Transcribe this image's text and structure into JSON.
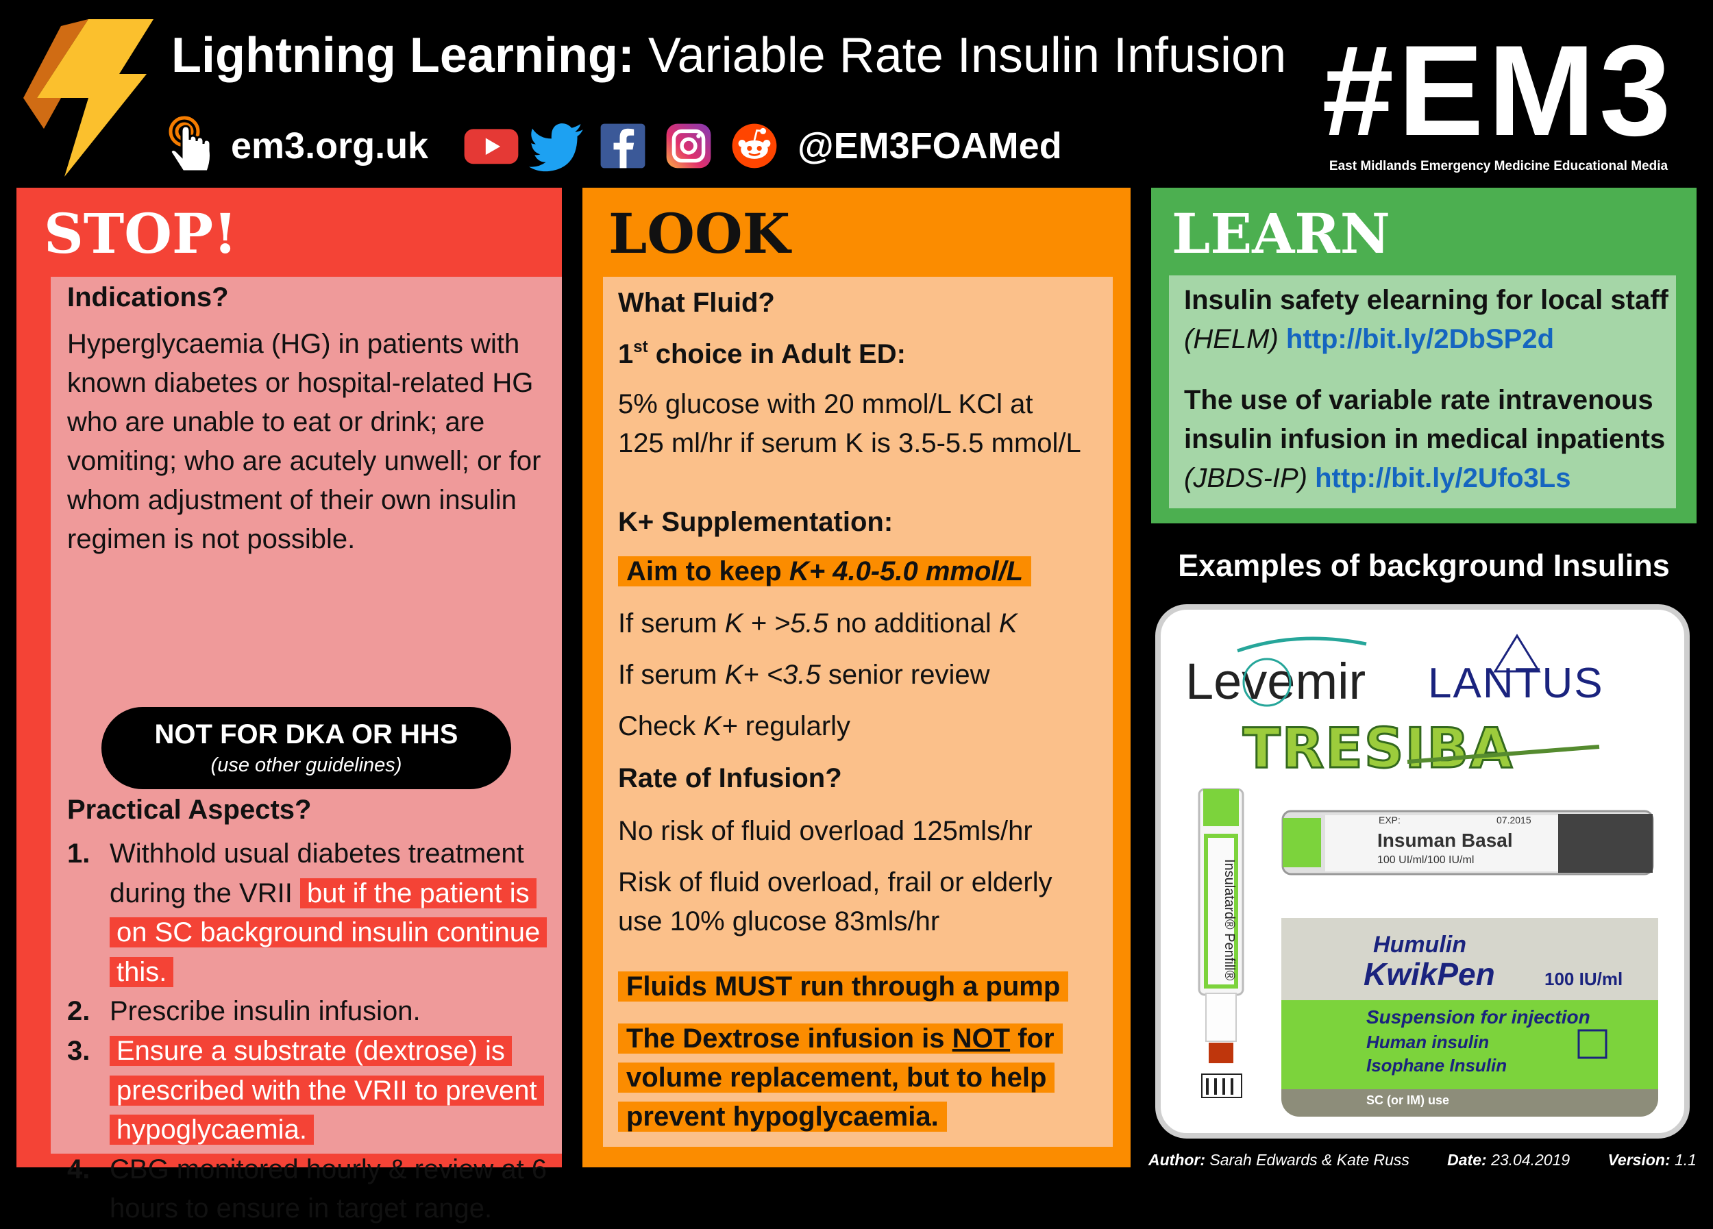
{
  "header": {
    "title_bold": "Lightning Learning:",
    "title_rest": "Variable Rate Insulin Infusion",
    "website": "em3.org.uk",
    "social_handle": "@EM3FOAMed",
    "social_icons": [
      "youtube-icon",
      "twitter-icon",
      "facebook-icon",
      "instagram-icon",
      "reddit-icon"
    ],
    "logo_text": "#EM3",
    "logo_subtitle": "East Midlands Emergency Medicine Educational Media"
  },
  "stop": {
    "title": "STOP!",
    "indications_heading": "Indications?",
    "indications_text": "Hyperglycaemia (HG) in patients with known diabetes or hospital-related HG who are unable to eat or drink; are vomiting; who are acutely unwell; or for whom adjustment of their own insulin regimen is not possible.",
    "warning_main": "NOT FOR DKA OR HHS",
    "warning_sub": "(use other guidelines)",
    "practical_heading": "Practical Aspects?",
    "items": [
      {
        "num": "1.",
        "text": "Withhold usual diabetes treatment during the VRII",
        "highlight": "but if the patient is on SC background insulin continue this."
      },
      {
        "num": "2.",
        "text": "Prescribe insulin infusion.",
        "highlight": ""
      },
      {
        "num": "3.",
        "text": "",
        "highlight": "Ensure a substrate (dextrose) is prescribed with the VRII to prevent hypoglycaemia."
      },
      {
        "num": "4.",
        "text": "CBG monitored hourly & review at 6 hours to ensure in target range.",
        "highlight": ""
      }
    ]
  },
  "look": {
    "title": "LOOK",
    "fluid_heading": "What Fluid?",
    "first_choice_pre": "1",
    "first_choice_sup": "st",
    "first_choice_post": " choice in Adult ED:",
    "fluid_text": "5% glucose with 20 mmol/L KCl at 125 ml/hr if serum K is 3.5-5.5 mmol/L",
    "k_heading": "K+ Supplementation:",
    "aim_pre": "Aim to keep ",
    "aim_em": "K+  4.0-5.0 mmol/L",
    "k1_pre": "If serum ",
    "k1_em": "K + >5.5",
    "k1_mid": " no additional ",
    "k1_em2": "K",
    "k2_pre": "If serum ",
    "k2_em": "K+ <3.5",
    "k2_post": " senior review",
    "k3_pre": "Check ",
    "k3_em": "K+",
    "k3_post": " regularly",
    "rate_heading": "Rate of Infusion?",
    "rate1": "No risk of fluid overload 125mls/hr",
    "rate2": "Risk of fluid overload, frail or elderly use 10% glucose 83mls/hr",
    "pump": "Fluids MUST run through a pump",
    "dex_pre": "The Dextrose infusion is ",
    "dex_not": "NOT",
    "dex_post": " for volume replacement, but to help prevent hypoglycaemia."
  },
  "learn": {
    "title": "LEARN",
    "r1_bold": "Insulin safety elearning for local staff",
    "r1_em": "(HELM)",
    "r1_link": "http://bit.ly/2DbSP2d",
    "r2_bold": "The use of variable rate intravenous insulin infusion in medical inpatients",
    "r2_em": "(JBDS-IP)",
    "r2_link": "http://bit.ly/2Ufo3Ls"
  },
  "examples": {
    "title": "Examples of background Insulins",
    "levemir": "Levemir",
    "lantus": "LANTUS",
    "tresiba": "TRESIBA",
    "insuman": "Insuman Basal",
    "insuman_sub": "100 UI/ml/100 IU/ml",
    "insuman_exp": "EXP:",
    "insuman_date": "07.2015",
    "insulatard": "Insulatard® Penfill®",
    "humulin": "Humulin",
    "kwikpen": "KwikPen",
    "kwikpen_strength": "100 IU/ml",
    "humulin_l1": "Suspension for injection",
    "humulin_l2": "Human insulin",
    "humulin_l3": "Isophane Insulin",
    "humulin_l4": "SC (or IM) use"
  },
  "footer": {
    "author_label": "Author:",
    "author": "Sarah Edwards & Kate Russ",
    "date_label": "Date:",
    "date": "23.04.2019",
    "version_label": "Version:",
    "version": "1.1"
  },
  "colors": {
    "stop": "#f44336",
    "look": "#fb8c00",
    "learn": "#4caf50",
    "link": "#1565c0"
  }
}
